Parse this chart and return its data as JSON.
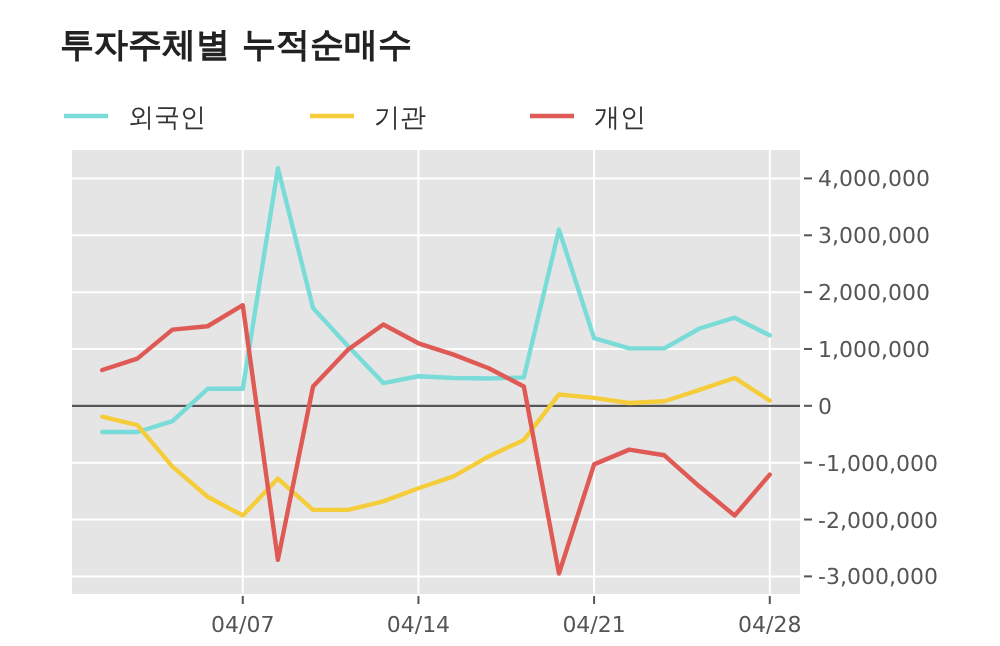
{
  "chart_data": {
    "type": "line",
    "title": "투자주체별 누적순매수",
    "categories": [
      null,
      null,
      null,
      null,
      "04/07",
      null,
      null,
      null,
      null,
      "04/14",
      null,
      null,
      null,
      null,
      "04/21",
      null,
      null,
      null,
      null,
      "04/28"
    ],
    "series": [
      {
        "name": "외국인",
        "color": "#7adcd8",
        "values": [
          -460000,
          -460000,
          -270000,
          300000,
          300000,
          4180000,
          1720000,
          1050000,
          400000,
          520000,
          490000,
          480000,
          500000,
          3100000,
          1190000,
          1010000,
          1010000,
          1360000,
          1550000,
          1240000
        ]
      },
      {
        "name": "기관",
        "color": "#f5cd3a",
        "values": [
          -190000,
          -340000,
          -1070000,
          -1600000,
          -1930000,
          -1280000,
          -1830000,
          -1830000,
          -1680000,
          -1450000,
          -1240000,
          -890000,
          -600000,
          200000,
          140000,
          50000,
          80000,
          280000,
          490000,
          90000
        ]
      },
      {
        "name": "개인",
        "color": "#e05a55",
        "values": [
          630000,
          830000,
          1340000,
          1400000,
          1770000,
          -2710000,
          340000,
          990000,
          1430000,
          1100000,
          900000,
          660000,
          340000,
          -2950000,
          -1030000,
          -770000,
          -870000,
          -1420000,
          -1930000,
          -1210000
        ]
      }
    ],
    "ylim": [
      -3310000,
      4500000
    ],
    "yticks": [
      {
        "value": -3000000,
        "label": "-3,000,000"
      },
      {
        "value": -2000000,
        "label": "-2,000,000"
      },
      {
        "value": -1000000,
        "label": "-1,000,000"
      },
      0,
      {
        "value": 1000000,
        "label": "1,000,000"
      },
      {
        "value": 2000000,
        "label": "2,000,000"
      },
      {
        "value": 3000000,
        "label": "3,000,000"
      },
      {
        "value": 4000000,
        "label": "4,000,000"
      }
    ],
    "ref_lines": [
      {
        "axis": "y",
        "value": 0,
        "color": "#555555"
      }
    ],
    "grid": true,
    "legend": "top left",
    "marker": "none",
    "line_style": "solid"
  }
}
